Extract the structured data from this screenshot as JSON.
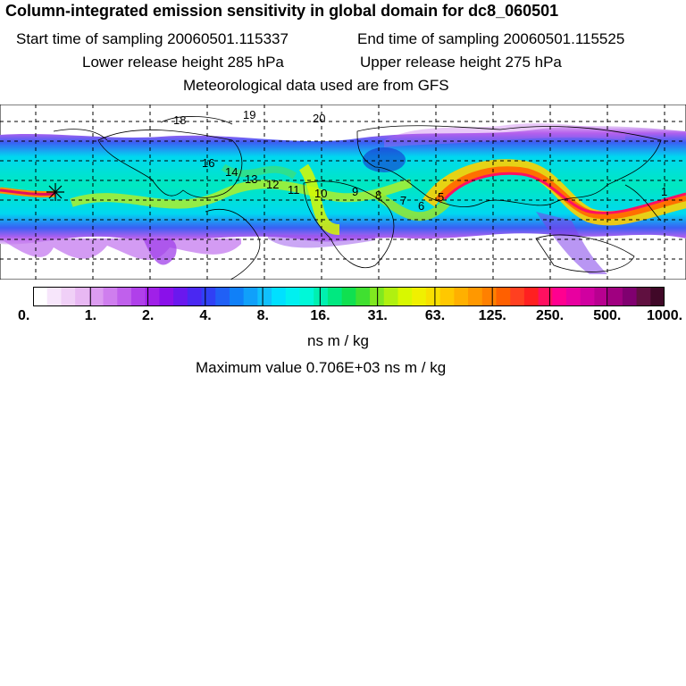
{
  "header": {
    "title": "Column-integrated emission sensitivity in global domain for dc8_060501",
    "start_time": "Start time of sampling 20060501.115337",
    "end_time": "End time of sampling 20060501.115525",
    "lower_release": "Lower release height  285 hPa",
    "upper_release": "Upper release height  275 hPa",
    "met_data": "Meteorological data used are from GFS"
  },
  "map": {
    "grid": "dashed",
    "markers": [
      {
        "label": "19"
      },
      {
        "label": "20"
      },
      {
        "label": "18"
      },
      {
        "label": "16"
      },
      {
        "label": "14"
      },
      {
        "label": "13"
      },
      {
        "label": "12"
      },
      {
        "label": "11"
      },
      {
        "label": "10"
      },
      {
        "label": "9"
      },
      {
        "label": "8"
      },
      {
        "label": "7"
      },
      {
        "label": "6"
      },
      {
        "label": "5"
      },
      {
        "label": "1"
      }
    ],
    "release_marker": "asterisk-icon"
  },
  "colorbar": {
    "colors": [
      "#ffffff",
      "#f7e6fb",
      "#f0d0f7",
      "#e8b8f3",
      "#dc9cf0",
      "#cf7eee",
      "#c060ec",
      "#b040ea",
      "#a020e8",
      "#8a10ea",
      "#6a18ee",
      "#4a28f2",
      "#3040f5",
      "#2060f6",
      "#1080f8",
      "#10a0fa",
      "#10c0fc",
      "#00e0ff",
      "#00f0f0",
      "#00f8d8",
      "#00f0b0",
      "#00e880",
      "#10e050",
      "#40e030",
      "#80e820",
      "#b0f010",
      "#d8f800",
      "#f0f000",
      "#f8e000",
      "#ffc800",
      "#ffb000",
      "#ff9800",
      "#ff8000",
      "#ff6000",
      "#ff4020",
      "#ff2020",
      "#ff1060",
      "#ff0090",
      "#e800a0",
      "#d000a0",
      "#b80090",
      "#a00080",
      "#800070",
      "#601040",
      "#400828"
    ],
    "tick_labels": [
      "0.",
      "1.",
      "2.",
      "4.",
      "8.",
      "16.",
      "31.",
      "63.",
      "125.",
      "250.",
      "500.",
      "1000."
    ],
    "unit": "ns m / kg"
  },
  "footer": {
    "max_value": "Maximum value  0.706E+03 ns m / kg"
  }
}
